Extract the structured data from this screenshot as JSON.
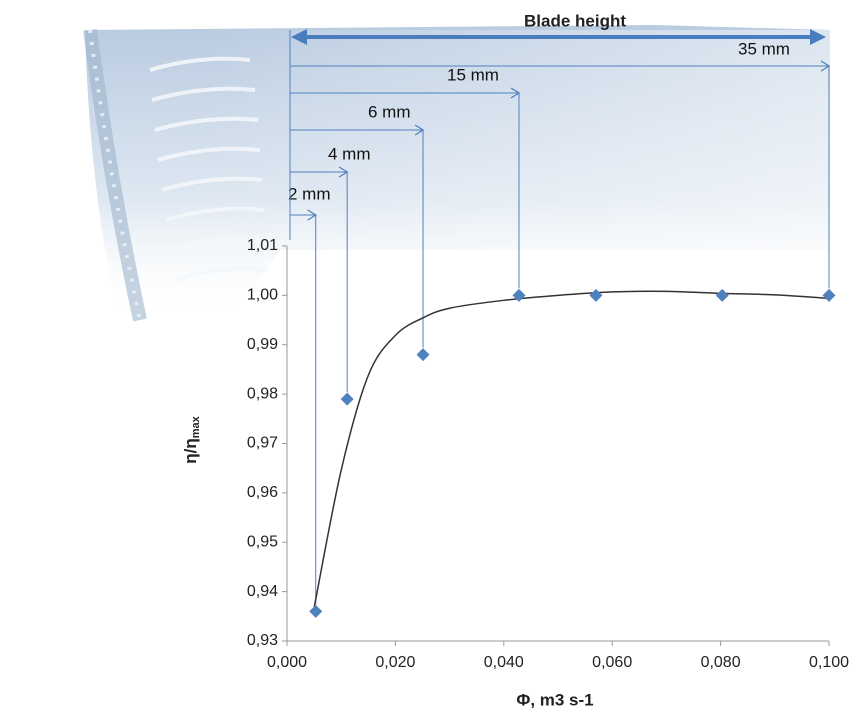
{
  "chart_data": {
    "type": "scatter",
    "x": [
      0.0053,
      0.0111,
      0.0251,
      0.0428,
      0.057,
      0.0803,
      0.1
    ],
    "values": [
      0.936,
      0.979,
      0.988,
      1.0,
      1.0,
      1.0,
      1.0
    ],
    "color": "#4f81bd",
    "fit": {
      "color": "#333333",
      "x": [
        0.005,
        0.01,
        0.015,
        0.02,
        0.025,
        0.03,
        0.04,
        0.05,
        0.06,
        0.07,
        0.08,
        0.09,
        0.1
      ],
      "values": [
        0.9367,
        0.9646,
        0.9838,
        0.9919,
        0.9954,
        0.9974,
        0.999,
        1.0,
        1.0007,
        1.0008,
        1.0004,
        1.0001,
        0.9994
      ]
    },
    "xlabel": "Φ, m3 s-1",
    "ylabel": {
      "text": "η/η",
      "subscript": "max"
    },
    "xlim": [
      0,
      0.1
    ],
    "ylim": [
      0.93,
      1.01
    ],
    "xticks": [
      {
        "value": 0,
        "label": "0,000"
      },
      {
        "value": 0.02,
        "label": "0,020"
      },
      {
        "value": 0.04,
        "label": "0,040"
      },
      {
        "value": 0.06,
        "label": "0,060"
      },
      {
        "value": 0.08,
        "label": "0,080"
      },
      {
        "value": 0.1,
        "label": "0,100"
      }
    ],
    "yticks": [
      {
        "value": 0.93,
        "label": "0,93"
      },
      {
        "value": 0.94,
        "label": "0,94"
      },
      {
        "value": 0.95,
        "label": "0,95"
      },
      {
        "value": 0.96,
        "label": "0,96"
      },
      {
        "value": 0.97,
        "label": "0,97"
      },
      {
        "value": 0.98,
        "label": "0,98"
      },
      {
        "value": 0.99,
        "label": "0,99"
      },
      {
        "value": 1.0,
        "label": "1,00"
      },
      {
        "value": 1.01,
        "label": "1,01"
      }
    ],
    "blade_height_label": "Blade height",
    "annotations": [
      {
        "text": "2 mm"
      },
      {
        "text": "4 mm"
      },
      {
        "text": "6 mm"
      },
      {
        "text": "15 mm"
      },
      {
        "text": "35 mm"
      }
    ]
  }
}
